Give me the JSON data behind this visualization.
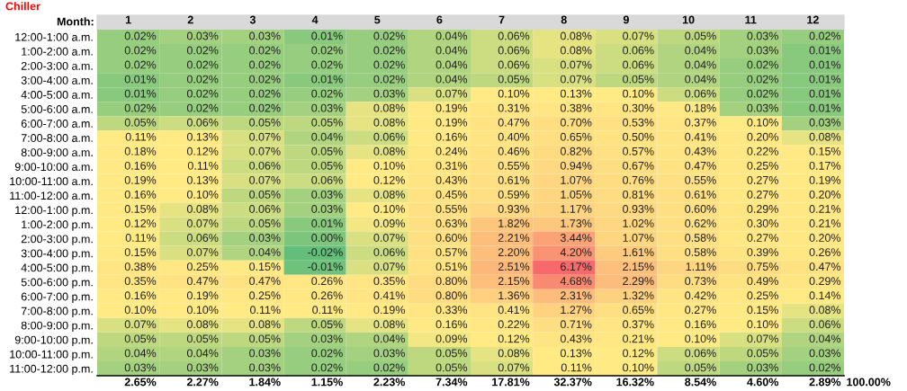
{
  "chart_data": {
    "type": "heatmap",
    "title": "Chiller",
    "xlabel": "Month:",
    "categories": [
      "1",
      "2",
      "3",
      "4",
      "5",
      "6",
      "7",
      "8",
      "9",
      "10",
      "11",
      "12"
    ],
    "y_categories": [
      "12:00-1:00 a.m.",
      "1:00-2:00 a.m.",
      "2:00-3:00 a.m.",
      "3:00-4:00 a.m.",
      "4:00-5:00 a.m.",
      "5:00-6:00 a.m.",
      "6:00-7:00 a.m.",
      "7:00-8:00 a.m.",
      "8:00-9:00 a.m.",
      "9:00-10:00 a.m.",
      "10:00-11:00 a.m.",
      "11:00-12:00 a.m.",
      "12:00-1:00 p.m.",
      "1:00-2:00 p.m.",
      "2:00-3:00 p.m.",
      "3:00-4:00 p.m.",
      "4:00-5:00 p.m.",
      "5:00-6:00 p.m.",
      "6:00-7:00 p.m.",
      "7:00-8:00 p.m.",
      "8:00-9:00 p.m.",
      "9:00-10:00 p.m.",
      "10:00-11:00 p.m.",
      "11:00-12:00 p.m."
    ],
    "cells": [
      [
        0.02,
        0.03,
        0.03,
        0.01,
        0.02,
        0.04,
        0.06,
        0.08,
        0.07,
        0.05,
        0.03,
        0.02
      ],
      [
        0.02,
        0.02,
        0.02,
        0.02,
        0.02,
        0.04,
        0.06,
        0.08,
        0.06,
        0.04,
        0.03,
        0.01
      ],
      [
        0.02,
        0.02,
        0.02,
        0.02,
        0.02,
        0.04,
        0.06,
        0.07,
        0.06,
        0.04,
        0.02,
        0.01
      ],
      [
        0.01,
        0.02,
        0.02,
        0.01,
        0.02,
        0.04,
        0.05,
        0.07,
        0.05,
        0.04,
        0.02,
        0.01
      ],
      [
        0.01,
        0.02,
        0.02,
        0.02,
        0.03,
        0.07,
        0.1,
        0.13,
        0.1,
        0.06,
        0.02,
        0.01
      ],
      [
        0.02,
        0.02,
        0.02,
        0.03,
        0.08,
        0.19,
        0.31,
        0.38,
        0.3,
        0.18,
        0.03,
        0.01
      ],
      [
        0.05,
        0.06,
        0.05,
        0.05,
        0.08,
        0.19,
        0.47,
        0.7,
        0.53,
        0.37,
        0.1,
        0.03
      ],
      [
        0.11,
        0.13,
        0.07,
        0.04,
        0.06,
        0.16,
        0.4,
        0.65,
        0.5,
        0.41,
        0.2,
        0.08
      ],
      [
        0.18,
        0.12,
        0.07,
        0.05,
        0.08,
        0.24,
        0.46,
        0.82,
        0.57,
        0.43,
        0.22,
        0.15
      ],
      [
        0.16,
        0.11,
        0.06,
        0.05,
        0.1,
        0.31,
        0.55,
        0.94,
        0.67,
        0.47,
        0.25,
        0.17
      ],
      [
        0.19,
        0.13,
        0.07,
        0.06,
        0.12,
        0.43,
        0.61,
        1.07,
        0.76,
        0.55,
        0.27,
        0.19
      ],
      [
        0.16,
        0.1,
        0.05,
        0.03,
        0.08,
        0.45,
        0.59,
        1.05,
        0.81,
        0.61,
        0.27,
        0.2
      ],
      [
        0.15,
        0.08,
        0.06,
        0.03,
        0.1,
        0.55,
        0.93,
        1.17,
        0.93,
        0.6,
        0.29,
        0.21
      ],
      [
        0.12,
        0.07,
        0.05,
        0.01,
        0.09,
        0.63,
        1.82,
        1.73,
        1.02,
        0.62,
        0.3,
        0.21
      ],
      [
        0.11,
        0.06,
        0.03,
        0.0,
        0.07,
        0.6,
        2.21,
        3.44,
        1.07,
        0.58,
        0.27,
        0.2
      ],
      [
        0.15,
        0.07,
        0.04,
        -0.02,
        0.06,
        0.57,
        2.2,
        4.2,
        1.61,
        0.58,
        0.39,
        0.26
      ],
      [
        0.38,
        0.25,
        0.15,
        -0.01,
        0.07,
        0.51,
        2.51,
        6.17,
        2.15,
        1.11,
        0.75,
        0.47
      ],
      [
        0.35,
        0.47,
        0.47,
        0.26,
        0.35,
        0.8,
        2.15,
        4.68,
        2.29,
        0.73,
        0.49,
        0.29
      ],
      [
        0.16,
        0.19,
        0.25,
        0.26,
        0.41,
        0.8,
        1.36,
        2.31,
        1.32,
        0.42,
        0.25,
        0.14
      ],
      [
        0.1,
        0.1,
        0.11,
        0.11,
        0.19,
        0.33,
        0.41,
        1.27,
        0.65,
        0.27,
        0.15,
        0.08
      ],
      [
        0.07,
        0.08,
        0.08,
        0.05,
        0.08,
        0.16,
        0.22,
        0.71,
        0.37,
        0.16,
        0.1,
        0.06
      ],
      [
        0.05,
        0.05,
        0.05,
        0.03,
        0.04,
        0.09,
        0.12,
        0.43,
        0.21,
        0.1,
        0.07,
        0.04
      ],
      [
        0.04,
        0.04,
        0.03,
        0.02,
        0.03,
        0.05,
        0.08,
        0.13,
        0.12,
        0.06,
        0.05,
        0.03
      ],
      [
        0.03,
        0.03,
        0.03,
        0.02,
        0.02,
        0.05,
        0.07,
        0.11,
        0.1,
        0.05,
        0.03,
        0.02
      ]
    ],
    "cell_labels": [
      [
        "0.02%",
        "0.03%",
        "0.03%",
        "0.01%",
        "0.02%",
        "0.04%",
        "0.06%",
        "0.08%",
        "0.07%",
        "0.05%",
        "0.03%",
        "0.02%"
      ],
      [
        "0.02%",
        "0.02%",
        "0.02%",
        "0.02%",
        "0.02%",
        "0.04%",
        "0.06%",
        "0.08%",
        "0.06%",
        "0.04%",
        "0.03%",
        "0.01%"
      ],
      [
        "0.02%",
        "0.02%",
        "0.02%",
        "0.02%",
        "0.02%",
        "0.04%",
        "0.06%",
        "0.07%",
        "0.06%",
        "0.04%",
        "0.02%",
        "0.01%"
      ],
      [
        "0.01%",
        "0.02%",
        "0.02%",
        "0.01%",
        "0.02%",
        "0.04%",
        "0.05%",
        "0.07%",
        "0.05%",
        "0.04%",
        "0.02%",
        "0.01%"
      ],
      [
        "0.01%",
        "0.02%",
        "0.02%",
        "0.02%",
        "0.03%",
        "0.07%",
        "0.10%",
        "0.13%",
        "0.10%",
        "0.06%",
        "0.02%",
        "0.01%"
      ],
      [
        "0.02%",
        "0.02%",
        "0.02%",
        "0.03%",
        "0.08%",
        "0.19%",
        "0.31%",
        "0.38%",
        "0.30%",
        "0.18%",
        "0.03%",
        "0.01%"
      ],
      [
        "0.05%",
        "0.06%",
        "0.05%",
        "0.05%",
        "0.08%",
        "0.19%",
        "0.47%",
        "0.70%",
        "0.53%",
        "0.37%",
        "0.10%",
        "0.03%"
      ],
      [
        "0.11%",
        "0.13%",
        "0.07%",
        "0.04%",
        "0.06%",
        "0.16%",
        "0.40%",
        "0.65%",
        "0.50%",
        "0.41%",
        "0.20%",
        "0.08%"
      ],
      [
        "0.18%",
        "0.12%",
        "0.07%",
        "0.05%",
        "0.08%",
        "0.24%",
        "0.46%",
        "0.82%",
        "0.57%",
        "0.43%",
        "0.22%",
        "0.15%"
      ],
      [
        "0.16%",
        "0.11%",
        "0.06%",
        "0.05%",
        "0.10%",
        "0.31%",
        "0.55%",
        "0.94%",
        "0.67%",
        "0.47%",
        "0.25%",
        "0.17%"
      ],
      [
        "0.19%",
        "0.13%",
        "0.07%",
        "0.06%",
        "0.12%",
        "0.43%",
        "0.61%",
        "1.07%",
        "0.76%",
        "0.55%",
        "0.27%",
        "0.19%"
      ],
      [
        "0.16%",
        "0.10%",
        "0.05%",
        "0.03%",
        "0.08%",
        "0.45%",
        "0.59%",
        "1.05%",
        "0.81%",
        "0.61%",
        "0.27%",
        "0.20%"
      ],
      [
        "0.15%",
        "0.08%",
        "0.06%",
        "0.03%",
        "0.10%",
        "0.55%",
        "0.93%",
        "1.17%",
        "0.93%",
        "0.60%",
        "0.29%",
        "0.21%"
      ],
      [
        "0.12%",
        "0.07%",
        "0.05%",
        "0.01%",
        "0.09%",
        "0.63%",
        "1.82%",
        "1.73%",
        "1.02%",
        "0.62%",
        "0.30%",
        "0.21%"
      ],
      [
        "0.11%",
        "0.06%",
        "0.03%",
        "0.00%",
        "0.07%",
        "0.60%",
        "2.21%",
        "3.44%",
        "1.07%",
        "0.58%",
        "0.27%",
        "0.20%"
      ],
      [
        "0.15%",
        "0.07%",
        "0.04%",
        "-0.02%",
        "0.06%",
        "0.57%",
        "2.20%",
        "4.20%",
        "1.61%",
        "0.58%",
        "0.39%",
        "0.26%"
      ],
      [
        "0.38%",
        "0.25%",
        "0.15%",
        "-0.01%",
        "0.07%",
        "0.51%",
        "2.51%",
        "6.17%",
        "2.15%",
        "1.11%",
        "0.75%",
        "0.47%"
      ],
      [
        "0.35%",
        "0.47%",
        "0.47%",
        "0.26%",
        "0.35%",
        "0.80%",
        "2.15%",
        "4.68%",
        "2.29%",
        "0.73%",
        "0.49%",
        "0.29%"
      ],
      [
        "0.16%",
        "0.19%",
        "0.25%",
        "0.26%",
        "0.41%",
        "0.80%",
        "1.36%",
        "2.31%",
        "1.32%",
        "0.42%",
        "0.25%",
        "0.14%"
      ],
      [
        "0.10%",
        "0.10%",
        "0.11%",
        "0.11%",
        "0.19%",
        "0.33%",
        "0.41%",
        "1.27%",
        "0.65%",
        "0.27%",
        "0.15%",
        "0.08%"
      ],
      [
        "0.07%",
        "0.08%",
        "0.08%",
        "0.05%",
        "0.08%",
        "0.16%",
        "0.22%",
        "0.71%",
        "0.37%",
        "0.16%",
        "0.10%",
        "0.06%"
      ],
      [
        "0.05%",
        "0.05%",
        "0.05%",
        "0.03%",
        "0.04%",
        "0.09%",
        "0.12%",
        "0.43%",
        "0.21%",
        "0.10%",
        "0.07%",
        "0.04%"
      ],
      [
        "0.04%",
        "0.04%",
        "0.03%",
        "0.02%",
        "0.03%",
        "0.05%",
        "0.08%",
        "0.13%",
        "0.12%",
        "0.06%",
        "0.05%",
        "0.03%"
      ],
      [
        "0.03%",
        "0.03%",
        "0.03%",
        "0.02%",
        "0.02%",
        "0.05%",
        "0.07%",
        "0.11%",
        "0.10%",
        "0.05%",
        "0.03%",
        "0.02%"
      ]
    ],
    "colors": [
      "#63be7b",
      "#ffeb84",
      "#f8696b"
    ],
    "annotations": [
      "2.65%",
      "2.27%",
      "1.84%",
      "1.15%",
      "2.23%",
      "7.34%",
      "17.81%",
      "32.37%",
      "16.32%",
      "8.54%",
      "4.60%",
      "2.89%",
      "100.00%"
    ]
  }
}
